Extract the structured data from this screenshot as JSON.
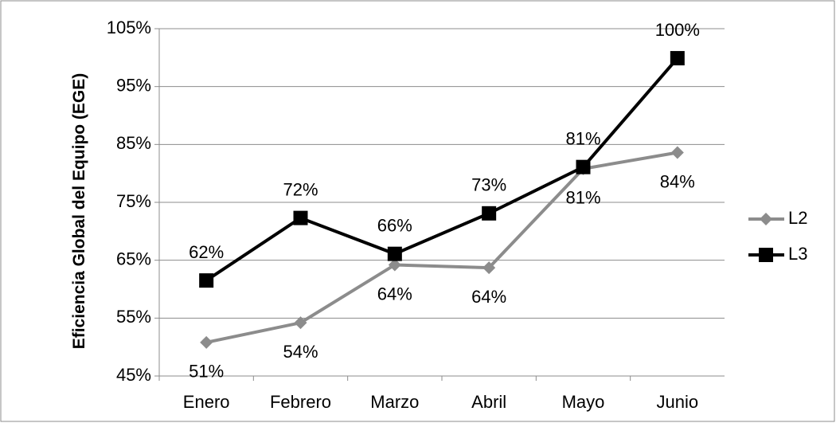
{
  "chart_data": {
    "type": "line",
    "y_label": "Eficiencia Global del Equipo (EGE)",
    "categories": [
      "Enero",
      "Febrero",
      "Marzo",
      "Abril",
      "Mayo",
      "Junio"
    ],
    "series": [
      {
        "name": "L2",
        "color": "#8c8c8c",
        "marker": "diamond",
        "values": [
          50.8,
          54.2,
          64.2,
          63.7,
          80.8,
          83.6
        ],
        "value_labels": [
          "51%",
          "54%",
          "64%",
          "64%",
          "81%",
          "84%"
        ]
      },
      {
        "name": "L3",
        "color": "#000000",
        "marker": "square",
        "values": [
          61.5,
          72.3,
          66.1,
          73.1,
          81.1,
          99.9
        ],
        "value_labels": [
          "62%",
          "72%",
          "66%",
          "73%",
          "81%",
          "100%"
        ]
      }
    ],
    "ylim": [
      45,
      105
    ],
    "yticks": [
      {
        "value": 45,
        "label": "45%"
      },
      {
        "value": 55,
        "label": "55%"
      },
      {
        "value": 65,
        "label": "65%"
      },
      {
        "value": 75,
        "label": "75%"
      },
      {
        "value": 85,
        "label": "85%"
      },
      {
        "value": 95,
        "label": "95%"
      },
      {
        "value": 105,
        "label": "105%"
      }
    ],
    "grid": true,
    "legend": "right"
  }
}
